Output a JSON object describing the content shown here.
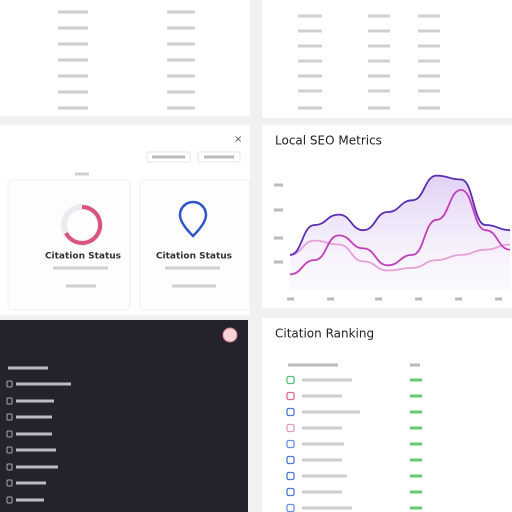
{
  "close": "×",
  "status_cards": [
    {
      "title": "Citation Status"
    },
    {
      "title": "Citation Status"
    }
  ],
  "ranking": {
    "title": "Citation Ranking"
  },
  "chart_data": {
    "type": "line",
    "title": "Local SEO Metrics",
    "ylim": [
      0,
      100
    ],
    "series": [
      {
        "color": "#5b2fb0",
        "values": [
          27,
          50,
          58,
          46,
          60,
          69,
          88,
          85,
          50,
          46
        ]
      },
      {
        "color": "#c23fb8",
        "values": [
          12,
          23,
          42,
          32,
          19,
          27,
          54,
          77,
          46,
          31
        ]
      },
      {
        "color": "#e6a0d6",
        "values": [
          27,
          38,
          35,
          22,
          15,
          17,
          23,
          27,
          31,
          35
        ]
      }
    ]
  }
}
